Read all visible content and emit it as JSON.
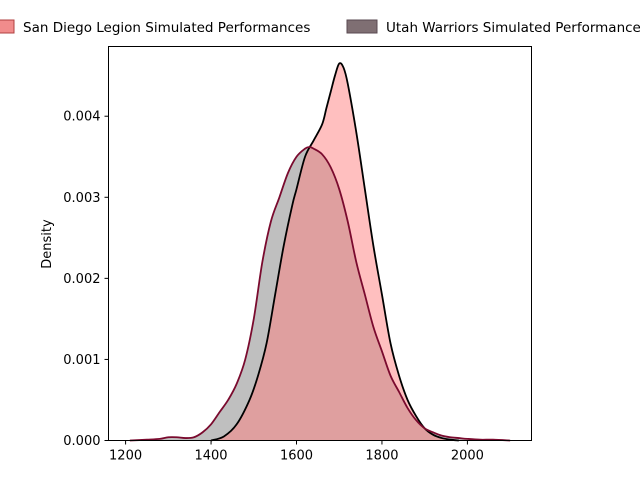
{
  "chart_data": {
    "type": "area",
    "xlabel": "",
    "ylabel": "Density",
    "xlim": [
      1160,
      2150
    ],
    "ylim": [
      0,
      0.00486
    ],
    "xticks": [
      1200,
      1400,
      1600,
      1800,
      2000
    ],
    "yticks": [
      0.0,
      0.001,
      0.002,
      0.003,
      0.004
    ],
    "ytick_labels": [
      "0.000",
      "0.001",
      "0.002",
      "0.003",
      "0.004"
    ],
    "grid": false,
    "legend": {
      "placement": "top, above plot"
    },
    "series": [
      {
        "name": "San Diego Legion Simulated Performances",
        "fill_color": "#f08080",
        "line_color": "#000000",
        "x": [
          1400,
          1430,
          1460,
          1490,
          1510,
          1530,
          1550,
          1570,
          1590,
          1600,
          1620,
          1640,
          1660,
          1670,
          1680,
          1690,
          1700,
          1710,
          1720,
          1740,
          1760,
          1780,
          1800,
          1820,
          1840,
          1860,
          1880,
          1900,
          1920,
          1940,
          1960,
          1980
        ],
        "y": [
          0.0,
          5e-05,
          0.0002,
          0.0005,
          0.0008,
          0.0012,
          0.0018,
          0.0024,
          0.0029,
          0.0031,
          0.0035,
          0.0037,
          0.0039,
          0.0041,
          0.0043,
          0.0045,
          0.00465,
          0.0046,
          0.0044,
          0.0038,
          0.0031,
          0.0024,
          0.0018,
          0.0012,
          0.0008,
          0.0005,
          0.0003,
          0.00015,
          7e-05,
          3e-05,
          1e-05,
          0.0
        ]
      },
      {
        "name": "Utah Warriors Simulated Performances",
        "fill_color": "#7f6f73",
        "line_color": "#7a0a2e",
        "x": [
          1210,
          1250,
          1280,
          1300,
          1320,
          1340,
          1360,
          1380,
          1400,
          1420,
          1440,
          1460,
          1480,
          1500,
          1520,
          1540,
          1560,
          1580,
          1600,
          1620,
          1630,
          1640,
          1660,
          1680,
          1700,
          1720,
          1740,
          1760,
          1780,
          1800,
          1820,
          1840,
          1860,
          1880,
          1900,
          1920,
          1940,
          1960,
          1980,
          2000,
          2030,
          2060,
          2100
        ],
        "y": [
          0.0,
          1e-05,
          2e-05,
          4e-05,
          4e-05,
          3e-05,
          4e-05,
          0.0001,
          0.0002,
          0.00035,
          0.0005,
          0.0007,
          0.001,
          0.0015,
          0.0022,
          0.0027,
          0.003,
          0.0033,
          0.0035,
          0.0036,
          0.00362,
          0.0036,
          0.00353,
          0.00337,
          0.0031,
          0.0027,
          0.0022,
          0.0018,
          0.0014,
          0.0011,
          0.0008,
          0.0006,
          0.0004,
          0.00025,
          0.00015,
          0.0001,
          6e-05,
          4e-05,
          3e-05,
          2e-05,
          1e-05,
          1e-05,
          0.0
        ]
      }
    ]
  }
}
